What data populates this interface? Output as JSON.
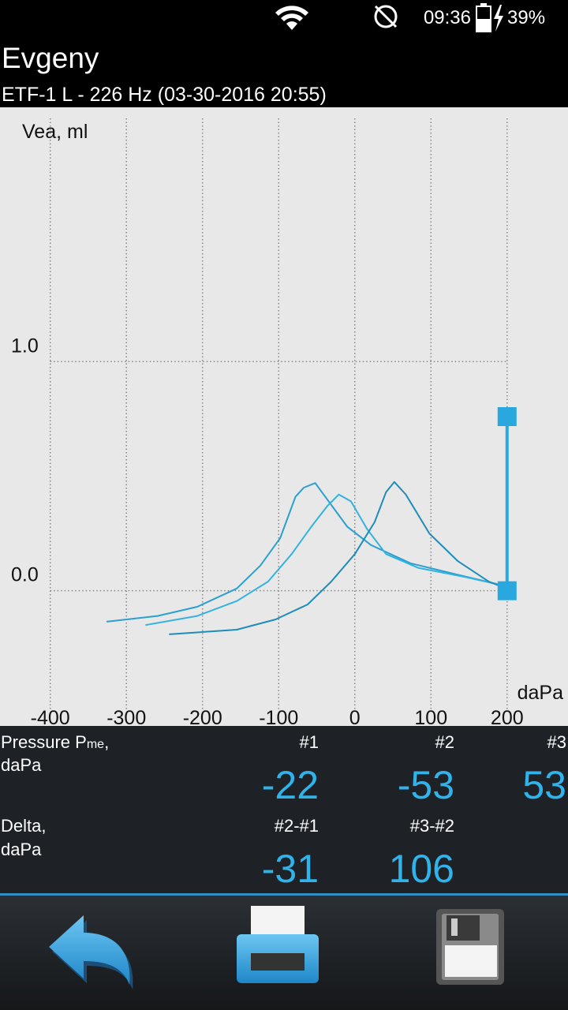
{
  "status_bar": {
    "time": "09:36",
    "battery": "39%"
  },
  "header": {
    "title": "Evgeny",
    "subtitle": "ETF-1 L - 226 Hz (03-30-2016 20:55)"
  },
  "chart_data": {
    "type": "line",
    "y_label": "Vea, ml",
    "x_label": "daPa",
    "xlim": [
      -466,
      280
    ],
    "ylim": [
      -0.59,
      2.11
    ],
    "xticks": [
      -400,
      -300,
      -200,
      -100,
      0,
      100,
      200
    ],
    "yticks": [
      {
        "value": 0,
        "label": "0.0"
      },
      {
        "value": 1,
        "label": "1.0"
      }
    ],
    "grid": true,
    "series": [
      {
        "color": "#2a9fd0",
        "x": [
          -326,
          -259,
          -207,
          -155,
          -124,
          -98,
          -78,
          -67,
          -52,
          -41,
          -10,
          21,
          73,
          135,
          199
        ],
        "values": [
          -0.135,
          -0.11,
          -0.07,
          0.01,
          0.11,
          0.23,
          0.41,
          0.45,
          0.47,
          0.42,
          0.28,
          0.2,
          0.12,
          0.07,
          0.02
        ]
      },
      {
        "color": "#33b2e0",
        "x": [
          -275,
          -207,
          -155,
          -114,
          -83,
          -57,
          -36,
          -21,
          -5,
          16,
          41,
          83,
          145,
          199
        ],
        "values": [
          -0.15,
          -0.11,
          -0.045,
          0.04,
          0.16,
          0.28,
          0.37,
          0.42,
          0.39,
          0.27,
          0.16,
          0.1,
          0.06,
          0.02
        ]
      },
      {
        "color": "#1f8cba",
        "x": [
          -244,
          -155,
          -104,
          -62,
          -31,
          0,
          26,
          41,
          52,
          67,
          98,
          135,
          176,
          199
        ],
        "values": [
          -0.19,
          -0.17,
          -0.125,
          -0.06,
          0.04,
          0.16,
          0.3,
          0.43,
          0.475,
          0.42,
          0.25,
          0.13,
          0.04,
          0.01
        ]
      }
    ],
    "cursor": {
      "x": 200,
      "values": [
        0,
        0.76
      ],
      "color": "#29a8e0"
    }
  },
  "results": {
    "pressure": {
      "label": "Pressure P",
      "label_sub": "me",
      "label_end": ",",
      "unit": "daPa",
      "columns": [
        "#1",
        "#2",
        "#3"
      ],
      "values": [
        -22,
        -53,
        53
      ]
    },
    "delta": {
      "label": "Delta,",
      "unit": "daPa",
      "columns": [
        "#2-#1",
        "#3-#2"
      ],
      "values": [
        -31,
        106
      ]
    }
  }
}
